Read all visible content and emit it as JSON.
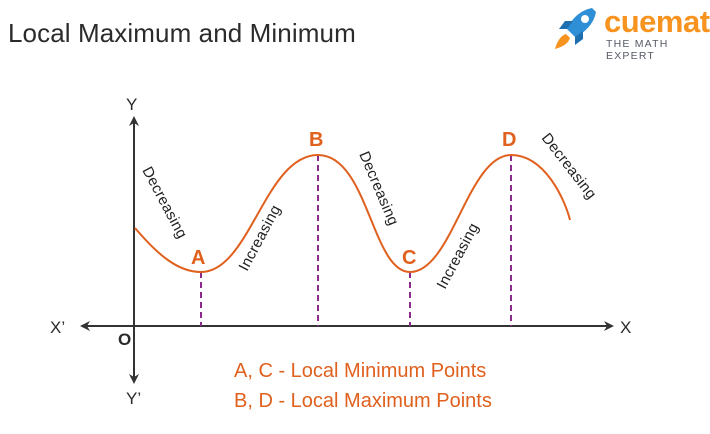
{
  "title": "Local Maximum and Minimum",
  "logo": {
    "name": "cuemath",
    "tagline": "THE MATH EXPERT",
    "icon": "rocket-icon"
  },
  "axes": {
    "x": "X",
    "x_neg": "X’",
    "y": "Y",
    "y_neg": "Y’",
    "origin": "O"
  },
  "points": {
    "a": "A",
    "b": "B",
    "c": "C",
    "d": "D"
  },
  "trends": {
    "t1": "Decreasing",
    "t2": "Increasing",
    "t3": "Decreasing",
    "t4": "Increasing",
    "t5": "Decreasing"
  },
  "legend": {
    "line1": "A, C - Local Minimum Points",
    "line2": "B, D - Local Maximum Points"
  },
  "colors": {
    "curve": "#e0601e",
    "label_orange": "#e0601e",
    "guide": "#8b2a8b",
    "axis": "#333333",
    "logo_orange": "#f7931e",
    "logo_blue": "#2f8fd6"
  }
}
